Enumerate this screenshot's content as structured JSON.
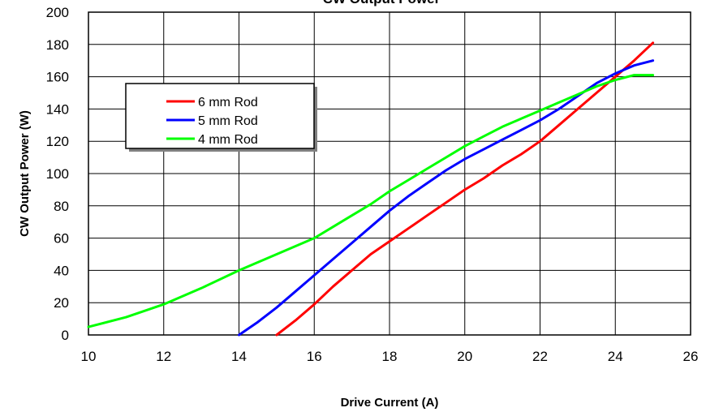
{
  "chart_data": {
    "type": "line",
    "title": "CW Output Power",
    "xlabel": "Drive Current (A)",
    "ylabel": "CW Output Power (W)",
    "xlim": [
      10,
      26
    ],
    "ylim": [
      0,
      200
    ],
    "x_ticks": [
      10,
      12,
      14,
      16,
      18,
      20,
      22,
      24,
      26
    ],
    "y_ticks": [
      0,
      20,
      40,
      60,
      80,
      100,
      120,
      140,
      160,
      180,
      200
    ],
    "grid": true,
    "legend_position": "upper-left",
    "series": [
      {
        "name": "6 mm Rod",
        "color": "#ff0000",
        "x": [
          15,
          15.5,
          16,
          16.5,
          17,
          17.5,
          18,
          18.5,
          19,
          19.5,
          20,
          20.5,
          21,
          21.5,
          22,
          22.5,
          23,
          23.5,
          24,
          24.5,
          25
        ],
        "y": [
          0,
          9,
          19,
          30,
          40,
          50,
          58,
          66,
          74,
          82,
          90,
          97,
          105,
          112,
          120,
          130,
          140,
          150,
          160,
          170,
          181
        ]
      },
      {
        "name": "5 mm Rod",
        "color": "#0000ff",
        "x": [
          14,
          14.5,
          15,
          15.5,
          16,
          16.5,
          17,
          17.5,
          18,
          18.5,
          19,
          19.5,
          20,
          20.5,
          21,
          21.5,
          22,
          22.5,
          23,
          23.5,
          24,
          24.5,
          25
        ],
        "y": [
          0,
          8,
          17,
          27,
          37,
          47,
          57,
          67,
          77,
          86,
          94,
          102,
          109,
          115,
          121,
          127,
          133,
          140,
          148,
          156,
          162,
          167,
          170
        ]
      },
      {
        "name": "4 mm Rod",
        "color": "#00ff00",
        "x": [
          10,
          11,
          12,
          13,
          14,
          15,
          16,
          16.5,
          17,
          17.5,
          18,
          18.5,
          19,
          19.5,
          20,
          20.5,
          21,
          21.5,
          22,
          22.5,
          23,
          23.5,
          24,
          24.5,
          25
        ],
        "y": [
          5,
          11,
          19,
          29,
          40,
          50,
          60,
          67,
          74,
          81,
          89,
          96,
          103,
          110,
          117,
          123,
          129,
          134,
          139,
          144,
          149,
          154,
          158,
          161,
          161
        ]
      }
    ]
  }
}
